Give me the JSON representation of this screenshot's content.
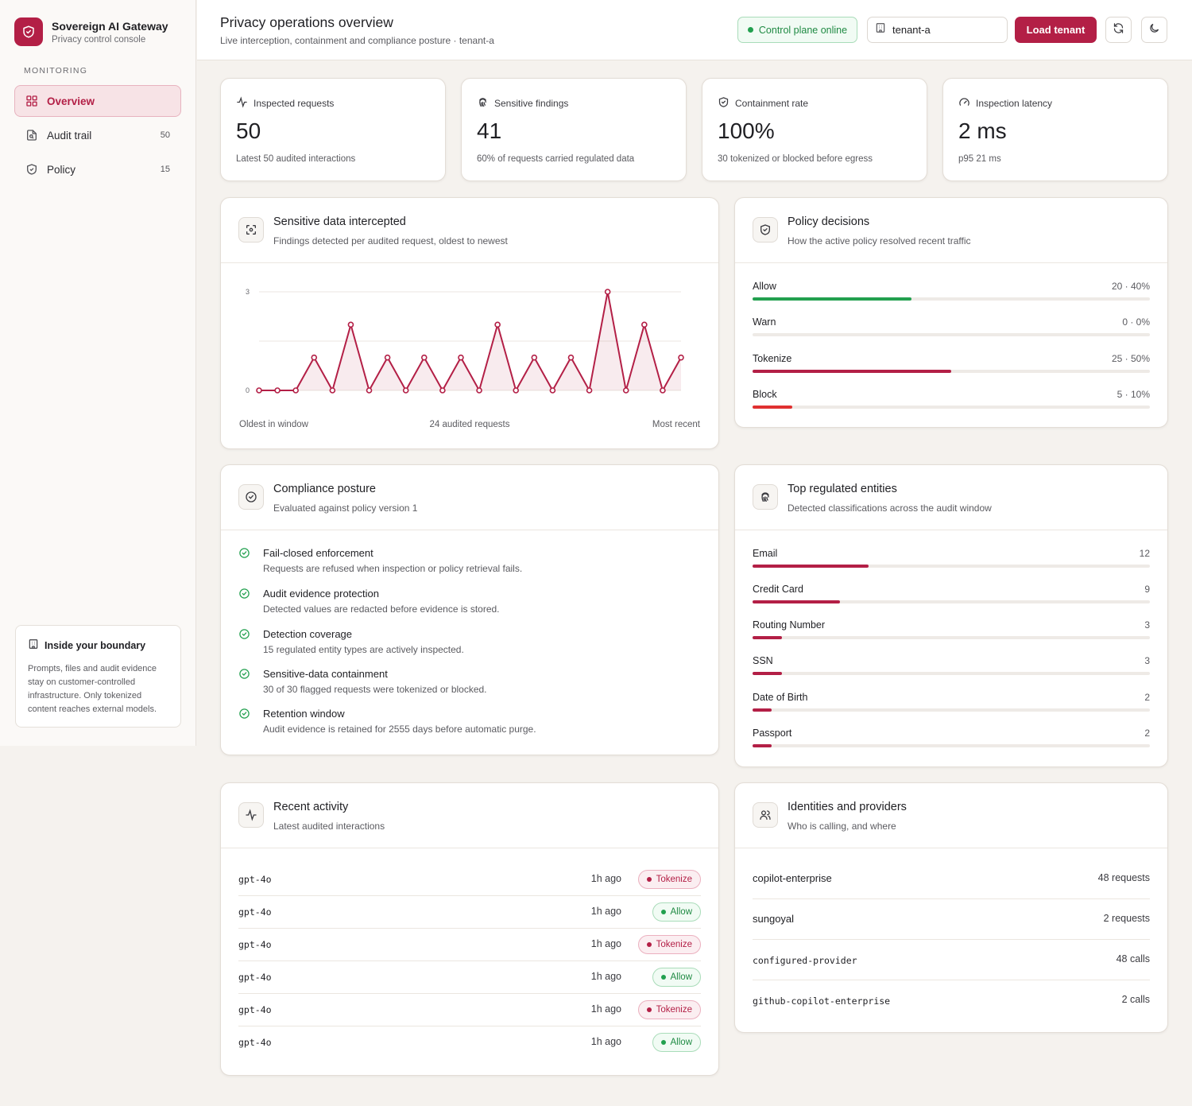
{
  "app": {
    "title": "Sovereign AI Gateway",
    "subtitle": "Privacy control console",
    "accent": "#b31f46"
  },
  "sidebar": {
    "section": "MONITORING",
    "items": [
      {
        "label": "Overview",
        "count": "",
        "icon": "grid-icon",
        "active": true
      },
      {
        "label": "Audit trail",
        "count": "50",
        "icon": "file-search-icon",
        "active": false
      },
      {
        "label": "Policy",
        "count": "15",
        "icon": "shield-icon",
        "active": false
      }
    ],
    "boundary": {
      "title": "Inside your boundary",
      "body": "Prompts, files and audit evidence stay on customer-controlled infrastructure. Only tokenized content reaches external models."
    }
  },
  "header": {
    "title": "Privacy operations overview",
    "subtitle": "Live interception, containment and compliance posture · tenant-a",
    "status": "Control plane online",
    "tenant_value": "tenant-a",
    "tenant_placeholder": "tenant-a",
    "load_label": "Load tenant",
    "refresh_icon": "refresh-icon",
    "theme_icon": "moon-icon"
  },
  "kpis": [
    {
      "label": "Inspected requests",
      "value": "50",
      "note": "Latest 50 audited interactions",
      "icon": "activity-icon"
    },
    {
      "label": "Sensitive findings",
      "value": "41",
      "note": "60% of requests carried regulated data",
      "icon": "fingerprint-icon"
    },
    {
      "label": "Containment rate",
      "value": "100%",
      "note": "30 tokenized or blocked before egress",
      "icon": "shield-check-icon"
    },
    {
      "label": "Inspection latency",
      "value": "2 ms",
      "note": "p95 21 ms",
      "icon": "gauge-icon"
    }
  ],
  "intercept": {
    "title": "Sensitive data intercepted",
    "subtitle": "Findings detected per audited request, oldest to newest",
    "foot_left": "Oldest in window",
    "foot_center": "24 audited requests",
    "foot_right": "Most recent",
    "chart_data": {
      "type": "area",
      "x": [
        1,
        2,
        3,
        4,
        5,
        6,
        7,
        8,
        9,
        10,
        11,
        12,
        13,
        14,
        15,
        16,
        17,
        18,
        19,
        20,
        21,
        22,
        23,
        24
      ],
      "values": [
        0,
        0,
        0,
        1,
        0,
        2,
        0,
        1,
        0,
        1,
        0,
        1,
        0,
        2,
        0,
        1,
        0,
        1,
        0,
        3,
        0,
        2,
        0,
        1
      ],
      "ylim": [
        0,
        3
      ],
      "yticks": [
        "0",
        "3"
      ],
      "grid": true,
      "color": "#b31f46"
    }
  },
  "policy": {
    "title": "Policy decisions",
    "subtitle": "How the active policy resolved recent traffic",
    "items": [
      {
        "label": "Allow",
        "display": "20 · 40%",
        "fraction": 0.4,
        "color": "#22a04f"
      },
      {
        "label": "Warn",
        "display": "0 · 0%",
        "fraction": 0,
        "color": "#e0a020"
      },
      {
        "label": "Tokenize",
        "display": "25 · 50%",
        "fraction": 0.5,
        "color": "#b31f46"
      },
      {
        "label": "Block",
        "display": "5 · 10%",
        "fraction": 0.1,
        "color": "#e03030"
      }
    ]
  },
  "compliance": {
    "title": "Compliance posture",
    "subtitle": "Evaluated against policy version 1",
    "items": [
      {
        "title": "Fail-closed enforcement",
        "desc": "Requests are refused when inspection or policy retrieval fails."
      },
      {
        "title": "Audit evidence protection",
        "desc": "Detected values are redacted before evidence is stored."
      },
      {
        "title": "Detection coverage",
        "desc": "15 regulated entity types are actively inspected."
      },
      {
        "title": "Sensitive-data containment",
        "desc": "30 of 30 flagged requests were tokenized or blocked."
      },
      {
        "title": "Retention window",
        "desc": "Audit evidence is retained for 2555 days before automatic purge."
      }
    ]
  },
  "entities": {
    "title": "Top regulated entities",
    "subtitle": "Detected classifications across the audit window",
    "max": 41,
    "items": [
      {
        "label": "Email",
        "count": "12",
        "value": 12
      },
      {
        "label": "Credit Card",
        "count": "9",
        "value": 9
      },
      {
        "label": "Routing Number",
        "count": "3",
        "value": 3
      },
      {
        "label": "SSN",
        "count": "3",
        "value": 3
      },
      {
        "label": "Date of Birth",
        "count": "2",
        "value": 2
      },
      {
        "label": "Passport",
        "count": "2",
        "value": 2
      }
    ]
  },
  "activity": {
    "title": "Recent activity",
    "subtitle": "Latest audited interactions",
    "rows": [
      {
        "model": "gpt-4o",
        "time": "1h ago",
        "decision": "Tokenize"
      },
      {
        "model": "gpt-4o",
        "time": "1h ago",
        "decision": "Allow"
      },
      {
        "model": "gpt-4o",
        "time": "1h ago",
        "decision": "Tokenize"
      },
      {
        "model": "gpt-4o",
        "time": "1h ago",
        "decision": "Allow"
      },
      {
        "model": "gpt-4o",
        "time": "1h ago",
        "decision": "Tokenize"
      },
      {
        "model": "gpt-4o",
        "time": "1h ago",
        "decision": "Allow"
      }
    ]
  },
  "identities": {
    "title": "Identities and providers",
    "subtitle": "Who is calling, and where",
    "rows": [
      {
        "name": "copilot-enterprise",
        "count": "48 requests",
        "mono": false
      },
      {
        "name": "sungoyal",
        "count": "2 requests",
        "mono": false
      },
      {
        "name": "configured-provider",
        "count": "48 calls",
        "mono": true
      },
      {
        "name": "github-copilot-enterprise",
        "count": "2 calls",
        "mono": true
      }
    ]
  }
}
